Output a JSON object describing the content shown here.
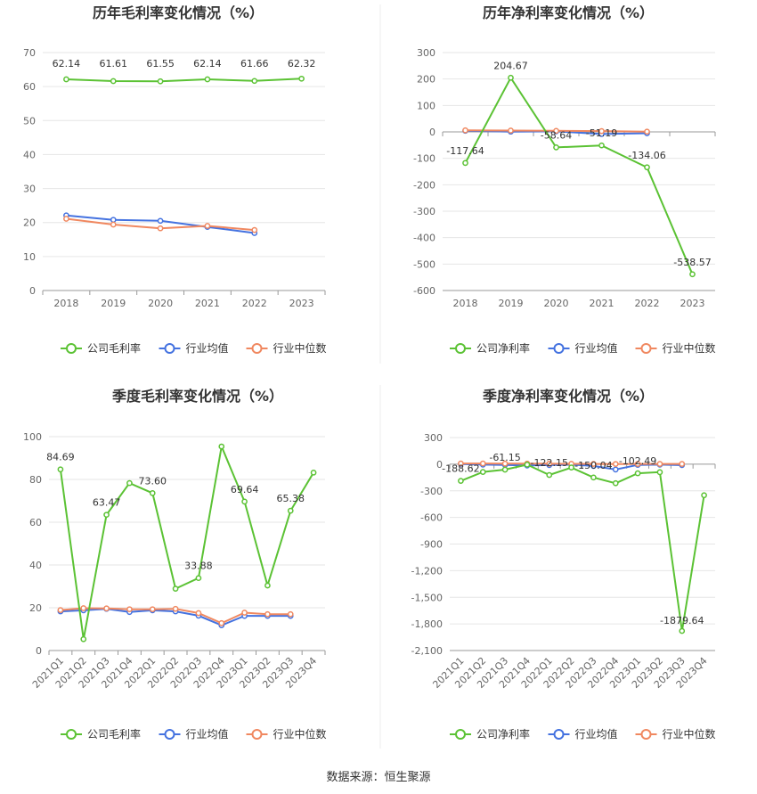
{
  "colors": {
    "company": "#5bc234",
    "industry_avg": "#4472e0",
    "industry_median": "#f08860"
  },
  "footer": {
    "source": "数据来源：恒生聚源"
  },
  "chart_data": [
    {
      "type": "line",
      "title": "历年毛利率变化情况（%）",
      "categories": [
        "2018",
        "2019",
        "2020",
        "2021",
        "2022",
        "2023"
      ],
      "ylim": [
        0,
        70
      ],
      "yticks": [
        "0",
        "10",
        "20",
        "30",
        "40",
        "50",
        "60",
        "70"
      ],
      "ytick_values": [
        0,
        10,
        20,
        30,
        40,
        50,
        60,
        70
      ],
      "grid": true,
      "legend_position": "bottom",
      "series": [
        {
          "name": "公司毛利率",
          "color": "#5bc234",
          "values": [
            62.14,
            61.61,
            61.55,
            62.14,
            61.66,
            62.32
          ]
        },
        {
          "name": "行业均值",
          "color": "#4472e0",
          "values": [
            22.1,
            20.8,
            20.5,
            18.7,
            16.9,
            null
          ]
        },
        {
          "name": "行业中位数",
          "color": "#f08860",
          "values": [
            21.1,
            19.4,
            18.3,
            19.0,
            17.8,
            null
          ]
        }
      ],
      "data_labels": [
        "62.14",
        "61.61",
        "61.55",
        "62.14",
        "61.66",
        "62.32"
      ]
    },
    {
      "type": "line",
      "title": "历年净利率变化情况（%）",
      "categories": [
        "2018",
        "2019",
        "2020",
        "2021",
        "2022",
        "2023"
      ],
      "ylim": [
        -600,
        300
      ],
      "yticks": [
        "-600",
        "-500",
        "-400",
        "-300",
        "-200",
        "-100",
        "0",
        "100",
        "200",
        "300"
      ],
      "ytick_values": [
        -600,
        -500,
        -400,
        -300,
        -200,
        -100,
        0,
        100,
        200,
        300
      ],
      "grid": true,
      "legend_position": "bottom",
      "series": [
        {
          "name": "公司净利率",
          "color": "#5bc234",
          "values": [
            -117.64,
            204.67,
            -58.64,
            -51.19,
            -134.06,
            -538.57
          ]
        },
        {
          "name": "行业均值",
          "color": "#4472e0",
          "values": [
            4,
            1,
            2,
            -8,
            -5,
            null
          ]
        },
        {
          "name": "行业中位数",
          "color": "#f08860",
          "values": [
            6,
            5,
            4,
            3,
            1,
            null
          ]
        }
      ],
      "data_labels": [
        "-117.64",
        "204.67",
        "-58.64",
        "-51.19",
        "-134.06",
        "-538.57"
      ]
    },
    {
      "type": "line",
      "title": "季度毛利率变化情况（%）",
      "categories": [
        "2021Q1",
        "2021Q2",
        "2021Q3",
        "2021Q4",
        "2022Q1",
        "2022Q2",
        "2022Q3",
        "2022Q4",
        "2023Q1",
        "2023Q2",
        "2023Q3",
        "2023Q4"
      ],
      "ylim": [
        0,
        100
      ],
      "yticks": [
        "0",
        "20",
        "40",
        "60",
        "80",
        "100"
      ],
      "ytick_values": [
        0,
        20,
        40,
        60,
        80,
        100
      ],
      "grid": true,
      "legend_position": "bottom",
      "series": [
        {
          "name": "公司毛利率",
          "color": "#5bc234",
          "values": [
            84.69,
            5.3,
            63.47,
            78.3,
            73.6,
            28.9,
            33.88,
            95.4,
            69.64,
            30.4,
            65.38,
            83.2
          ]
        },
        {
          "name": "行业均值",
          "color": "#4472e0",
          "values": [
            18.3,
            18.8,
            19.5,
            18.0,
            18.8,
            18.3,
            16.3,
            11.8,
            16.2,
            16.2,
            16.2,
            null
          ]
        },
        {
          "name": "行业中位数",
          "color": "#f08860",
          "values": [
            18.9,
            19.8,
            19.7,
            19.3,
            19.3,
            19.5,
            17.5,
            12.8,
            17.7,
            17.0,
            17.0,
            null
          ]
        }
      ],
      "data_labels": [
        "84.69",
        "63.47",
        "73.60",
        "33.88",
        "69.64",
        "65.38"
      ],
      "data_label_indices": [
        0,
        2,
        4,
        6,
        8,
        10
      ]
    },
    {
      "type": "line",
      "title": "季度净利率变化情况（%）",
      "categories": [
        "2021Q1",
        "2021Q2",
        "2021Q3",
        "2021Q4",
        "2022Q1",
        "2022Q2",
        "2022Q3",
        "2022Q4",
        "2023Q1",
        "2023Q2",
        "2023Q3",
        "2023Q4"
      ],
      "ylim": [
        -2100,
        300
      ],
      "yticks": [
        "-2,100",
        "-1,800",
        "-1,500",
        "-1,200",
        "-900",
        "-600",
        "-300",
        "0",
        "300"
      ],
      "ytick_values": [
        -2100,
        -1800,
        -1500,
        -1200,
        -900,
        -600,
        -300,
        0,
        300
      ],
      "grid": true,
      "legend_position": "bottom",
      "series": [
        {
          "name": "公司净利率",
          "color": "#5bc234",
          "values": [
            -188.62,
            -88.0,
            -61.15,
            -5.0,
            -122.15,
            -38.0,
            -150.04,
            -215.0,
            -102.49,
            -90.0,
            -1879.64,
            -350.0
          ]
        },
        {
          "name": "行业均值",
          "color": "#4472e0",
          "values": [
            2,
            -5,
            -8,
            -15,
            -10,
            -5,
            -20,
            -60,
            -8,
            -5,
            -10,
            null
          ]
        },
        {
          "name": "行业中位数",
          "color": "#f08860",
          "values": [
            8,
            8,
            6,
            6,
            5,
            4,
            3,
            2,
            3,
            3,
            3,
            null
          ]
        }
      ],
      "data_labels": [
        "-188.62",
        "-61.15",
        "-122.15",
        "-150.04",
        "-102.49",
        "-1879.64"
      ],
      "data_label_indices": [
        0,
        2,
        4,
        6,
        8,
        10
      ]
    }
  ]
}
